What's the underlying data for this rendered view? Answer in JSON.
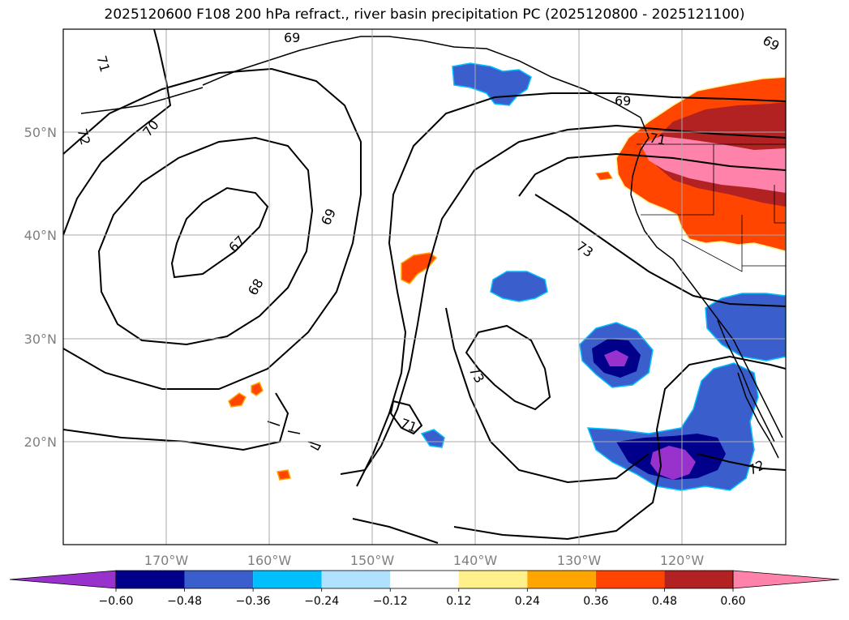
{
  "title": "2025120600 F108 200 hPa refract., river basin precipitation PC (2025120800 - 2025121100)",
  "latitudes": [
    "50°N",
    "40°N",
    "30°N",
    "20°N"
  ],
  "longitudes": [
    "170°W",
    "160°W",
    "150°W",
    "140°W",
    "130°W",
    "120°W"
  ],
  "contour_labels": [
    "69",
    "71",
    "72",
    "70",
    "69",
    "67",
    "68",
    "73",
    "73",
    "71",
    "69",
    "71",
    "72",
    "69"
  ],
  "colorbar": {
    "ticks": [
      "−0.60",
      "−0.48",
      "−0.36",
      "−0.24",
      "−0.12",
      "0.12",
      "0.24",
      "0.36",
      "0.48",
      "0.60"
    ],
    "colors": [
      "#9932cc",
      "#00008b",
      "#3a5fcd",
      "#00bfff",
      "#b0e2ff",
      "#ffffff",
      "#fff08c",
      "#ffa500",
      "#ff4500",
      "#b22222",
      "#ff82ab"
    ]
  }
}
